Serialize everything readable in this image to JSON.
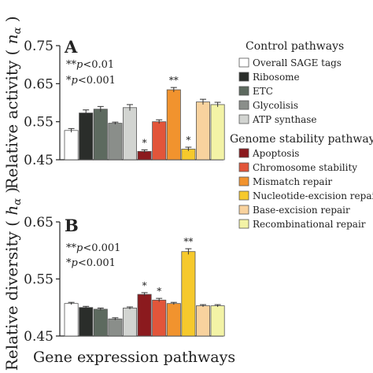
{
  "chart_data": {
    "type": "bar",
    "xlabel": "Gene expression pathways",
    "categories": [
      "Overall SAGE tags",
      "Ribosome",
      "ETC",
      "Glycolisis",
      "ATP synthase",
      "Apoptosis",
      "Chromosome stability",
      "Mismatch repair",
      "Nucleotide-excision repair",
      "Base-excision repair",
      "Recombinational repair"
    ],
    "colors": [
      "#ffffff",
      "#2a2d2a",
      "#5d6a5f",
      "#8a8e8a",
      "#d2d4d1",
      "#8b1a1e",
      "#e2553a",
      "#f1932e",
      "#f6c92c",
      "#f8d29e",
      "#f3f3a6"
    ],
    "legend": {
      "groups": [
        {
          "title": "Control pathways",
          "items": [
            0,
            1,
            2,
            3,
            4
          ]
        },
        {
          "title": "Genome stability pathway",
          "items": [
            5,
            6,
            7,
            8,
            9,
            10
          ]
        }
      ]
    },
    "panels": [
      {
        "letter": "A",
        "ylabel_text": "Relative activity ( ",
        "ylabel_symbol": "n",
        "ylabel_sub": "α",
        "ylabel_close": " )",
        "ylim": [
          0.45,
          0.75
        ],
        "yticks": [
          "0.45",
          "0.55",
          "0.65",
          "0.75"
        ],
        "ytick_values": [
          0.45,
          0.55,
          0.65,
          0.75
        ],
        "values": [
          0.527,
          0.573,
          0.583,
          0.546,
          0.587,
          0.472,
          0.55,
          0.634,
          0.478,
          0.602,
          0.595
        ],
        "errors": [
          0.005,
          0.008,
          0.007,
          0.003,
          0.008,
          0.004,
          0.005,
          0.006,
          0.005,
          0.007,
          0.006
        ],
        "stars": [
          "",
          "",
          "",
          "",
          "",
          "*",
          "",
          "**",
          "*",
          "",
          ""
        ],
        "note_lines": [
          {
            "stars": "**",
            "p": "p",
            "rest": "<0.01"
          },
          {
            "stars": "*",
            "p": "p",
            "rest": "<0.001"
          }
        ]
      },
      {
        "letter": "B",
        "ylabel_text": "Relative diversity ( ",
        "ylabel_symbol": "h",
        "ylabel_sub": "α",
        "ylabel_close": " )",
        "ylim": [
          0.45,
          0.65
        ],
        "yticks": [
          "0.45",
          "0.55",
          "0.65"
        ],
        "ytick_values": [
          0.45,
          0.55,
          0.65
        ],
        "values": [
          0.507,
          0.5,
          0.497,
          0.48,
          0.499,
          0.523,
          0.513,
          0.507,
          0.598,
          0.503,
          0.503
        ],
        "errors": [
          0.002,
          0.002,
          0.002,
          0.002,
          0.002,
          0.003,
          0.003,
          0.002,
          0.005,
          0.002,
          0.002
        ],
        "stars": [
          "",
          "",
          "",
          "",
          "",
          "*",
          "*",
          "",
          "**",
          "",
          ""
        ],
        "note_lines": [
          {
            "stars": "**",
            "p": "p",
            "rest": "<0.001"
          },
          {
            "stars": "*",
            "p": "p",
            "rest": "<0.001"
          }
        ]
      }
    ]
  }
}
